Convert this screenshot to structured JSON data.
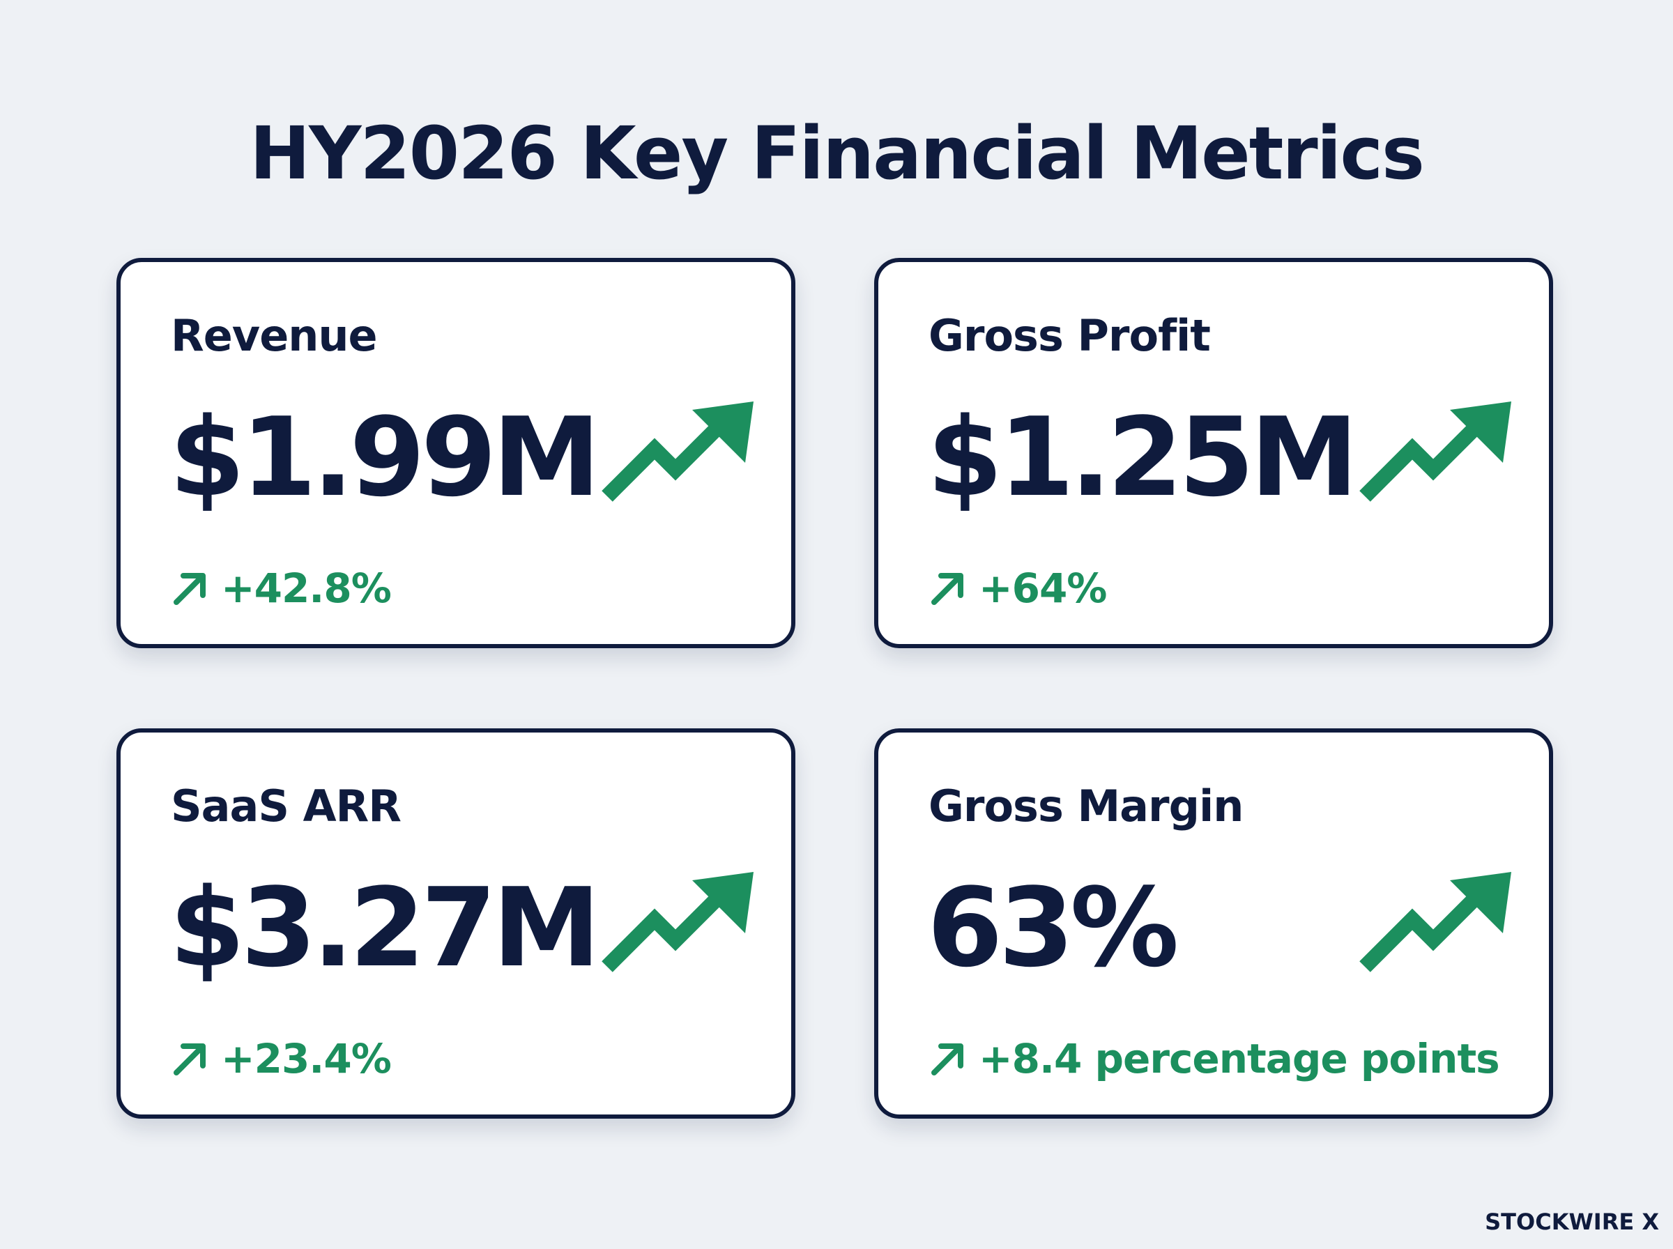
{
  "title": "HY2026 Key Financial Metrics",
  "accent_color": "#1c8f5e",
  "text_color": "#0f1b3d",
  "background_color": "#eef1f5",
  "cards": [
    {
      "label": "Revenue",
      "value": "$1.99M",
      "change": "+42.8%",
      "trend_icon": "trending-up-icon",
      "change_icon": "arrow-up-right-icon"
    },
    {
      "label": "Gross Profit",
      "value": "$1.25M",
      "change": "+64%",
      "trend_icon": "trending-up-icon",
      "change_icon": "arrow-up-right-icon"
    },
    {
      "label": "SaaS ARR",
      "value": "$3.27M",
      "change": "+23.4%",
      "trend_icon": "trending-up-icon",
      "change_icon": "arrow-up-right-icon"
    },
    {
      "label": "Gross Margin",
      "value": "63%",
      "change": "+8.4 percentage points",
      "trend_icon": "trending-up-icon",
      "change_icon": "arrow-up-right-icon"
    }
  ],
  "brand": "STOCKWIRE X"
}
